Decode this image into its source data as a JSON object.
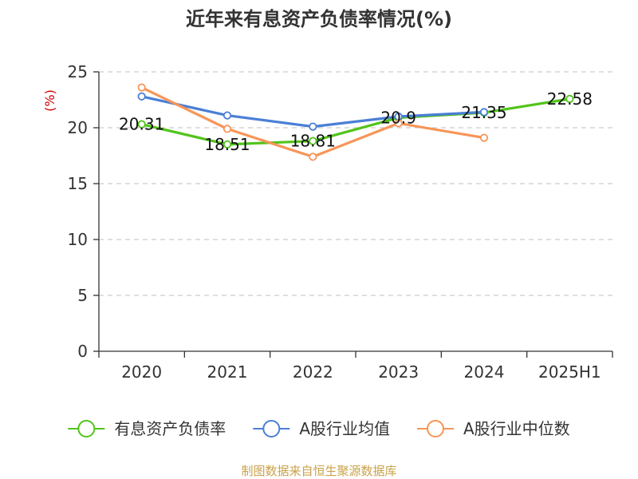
{
  "chart_data": {
    "type": "line",
    "title": "近年来有息资产负债率情况(%)",
    "ylabel": "(%)",
    "xlabel": "",
    "categories": [
      "2020",
      "2021",
      "2022",
      "2023",
      "2024",
      "2025H1"
    ],
    "ylim": [
      0,
      25
    ],
    "yticks": [
      0,
      5,
      10,
      15,
      20,
      25
    ],
    "grid": true,
    "legend_position": "bottom",
    "series": [
      {
        "name": "有息资产负债率",
        "color": "#52c41a",
        "values": [
          20.31,
          18.51,
          18.81,
          20.9,
          21.35,
          22.58
        ],
        "labels": [
          "20.31",
          "18.51",
          "18.81",
          "20.9",
          "21.35",
          "22.58"
        ]
      },
      {
        "name": "A股行业均值",
        "color": "#4a7fd6",
        "values": [
          22.8,
          21.1,
          20.1,
          21.0,
          21.4,
          null
        ]
      },
      {
        "name": "A股行业中位数",
        "color": "#f79558",
        "values": [
          23.6,
          19.9,
          17.4,
          20.4,
          19.1,
          null
        ]
      }
    ]
  },
  "source": "制图数据来自恒生聚源数据库"
}
